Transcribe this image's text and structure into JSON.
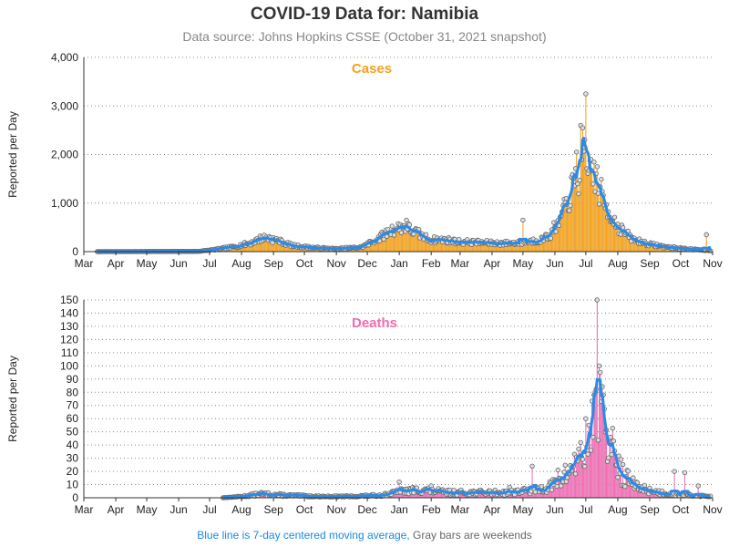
{
  "title": "COVID-19 Data for: Namibia",
  "subtitle": "Data source: Johns Hopkins CSSE (October 31, 2021 snapshot)",
  "footnote": {
    "blue": "Blue line is 7-day centered moving average,",
    "gray": "Gray bars are weekends"
  },
  "colors": {
    "cases": "#f5a21a",
    "deaths": "#f06cb4",
    "moving_average": "#2b8ae8",
    "weekend_bar": "#aaaaaa",
    "marker_outline": "#666666",
    "gridline": "#888888"
  },
  "chart_data": [
    {
      "type": "bar",
      "title": "Cases",
      "ylabel": "Reported per Day",
      "ylim": [
        0,
        4000
      ],
      "yticks": [
        "0",
        "1,000",
        "2,000",
        "3,000",
        "4,000"
      ],
      "ytick_values": [
        0,
        1000,
        2000,
        3000,
        4000
      ],
      "xticks": [
        "Mar",
        "Apr",
        "May",
        "Jun",
        "Jul",
        "Aug",
        "Sep",
        "Oct",
        "Nov",
        "Dec",
        "Jan",
        "Feb",
        "Mar",
        "Apr",
        "May",
        "Jun",
        "Jul",
        "Aug",
        "Sep",
        "Oct",
        "Nov"
      ],
      "xtick_dates": [
        "2020-03-01",
        "2020-04-01",
        "2020-05-01",
        "2020-06-01",
        "2020-07-01",
        "2020-08-01",
        "2020-09-01",
        "2020-10-01",
        "2020-11-01",
        "2020-12-01",
        "2021-01-01",
        "2021-02-01",
        "2021-03-01",
        "2021-04-01",
        "2021-05-01",
        "2021-06-01",
        "2021-07-01",
        "2021-08-01",
        "2021-09-01",
        "2021-10-01",
        "2021-11-01"
      ],
      "xlim": [
        "2020-03-01",
        "2021-11-01"
      ],
      "grid": "horizontal dotted",
      "series_keypoints": {
        "daily": [
          [
            "2020-03-14",
            0
          ],
          [
            "2020-06-20",
            5
          ],
          [
            "2020-07-05",
            40
          ],
          [
            "2020-07-25",
            100
          ],
          [
            "2020-08-10",
            180
          ],
          [
            "2020-08-22",
            290
          ],
          [
            "2020-09-05",
            230
          ],
          [
            "2020-09-20",
            120
          ],
          [
            "2020-10-10",
            80
          ],
          [
            "2020-11-01",
            55
          ],
          [
            "2020-11-25",
            90
          ],
          [
            "2020-12-10",
            250
          ],
          [
            "2020-12-25",
            450
          ],
          [
            "2021-01-05",
            520
          ],
          [
            "2021-01-15",
            420
          ],
          [
            "2021-01-30",
            250
          ],
          [
            "2021-02-15",
            240
          ],
          [
            "2021-03-01",
            200
          ],
          [
            "2021-03-20",
            190
          ],
          [
            "2021-04-10",
            170
          ],
          [
            "2021-04-30",
            190
          ],
          [
            "2021-05-20",
            250
          ],
          [
            "2021-06-01",
            400
          ],
          [
            "2021-06-10",
            850
          ],
          [
            "2021-06-18",
            1300
          ],
          [
            "2021-06-28",
            1650
          ],
          [
            "2021-07-03",
            1700
          ],
          [
            "2021-07-10",
            1500
          ],
          [
            "2021-07-20",
            950
          ],
          [
            "2021-08-01",
            520
          ],
          [
            "2021-08-15",
            260
          ],
          [
            "2021-09-01",
            150
          ],
          [
            "2021-09-20",
            90
          ],
          [
            "2021-10-10",
            50
          ],
          [
            "2021-10-30",
            20
          ]
        ],
        "spikes": [
          [
            "2021-07-01",
            3250
          ],
          [
            "2021-06-26",
            2600
          ],
          [
            "2021-06-28",
            2550
          ],
          [
            "2021-06-30",
            2300
          ],
          [
            "2021-06-22",
            2050
          ],
          [
            "2021-07-06",
            1900
          ],
          [
            "2021-07-12",
            1750
          ],
          [
            "2021-05-01",
            650
          ],
          [
            "2021-05-31",
            600
          ],
          [
            "2021-05-24",
            350
          ],
          [
            "2021-10-26",
            350
          ],
          [
            "2021-01-08",
            650
          ],
          [
            "2020-08-28",
            310
          ]
        ]
      }
    },
    {
      "type": "bar",
      "title": "Deaths",
      "ylabel": "Reported per Day",
      "ylim": [
        0,
        150
      ],
      "yticks": [
        "0",
        "10",
        "20",
        "30",
        "40",
        "50",
        "60",
        "70",
        "80",
        "90",
        "100",
        "110",
        "120",
        "130",
        "140",
        "150"
      ],
      "ytick_values": [
        0,
        10,
        20,
        30,
        40,
        50,
        60,
        70,
        80,
        90,
        100,
        110,
        120,
        130,
        140,
        150
      ],
      "xticks": [
        "Mar",
        "Apr",
        "May",
        "Jun",
        "Jul",
        "Aug",
        "Sep",
        "Oct",
        "Nov",
        "Dec",
        "Jan",
        "Feb",
        "Mar",
        "Apr",
        "May",
        "Jun",
        "Jul",
        "Aug",
        "Sep",
        "Oct",
        "Nov"
      ],
      "xtick_dates": [
        "2020-03-01",
        "2020-04-01",
        "2020-05-01",
        "2020-06-01",
        "2020-07-01",
        "2020-08-01",
        "2020-09-01",
        "2020-10-01",
        "2020-11-01",
        "2020-12-01",
        "2021-01-01",
        "2021-02-01",
        "2021-03-01",
        "2021-04-01",
        "2021-05-01",
        "2021-06-01",
        "2021-07-01",
        "2021-08-01",
        "2021-09-01",
        "2021-10-01",
        "2021-11-01"
      ],
      "xlim": [
        "2020-03-01",
        "2021-11-01"
      ],
      "grid": "horizontal dotted",
      "series_keypoints": {
        "daily": [
          [
            "2020-07-14",
            0
          ],
          [
            "2020-08-01",
            1
          ],
          [
            "2020-08-20",
            3
          ],
          [
            "2020-09-10",
            2
          ],
          [
            "2020-10-15",
            1
          ],
          [
            "2020-11-15",
            1
          ],
          [
            "2020-12-15",
            2
          ],
          [
            "2021-01-05",
            5
          ],
          [
            "2021-01-25",
            6
          ],
          [
            "2021-02-15",
            4
          ],
          [
            "2021-03-15",
            4
          ],
          [
            "2021-04-15",
            4
          ],
          [
            "2021-05-15",
            6
          ],
          [
            "2021-06-01",
            10
          ],
          [
            "2021-06-15",
            20
          ],
          [
            "2021-06-25",
            30
          ],
          [
            "2021-07-05",
            42
          ],
          [
            "2021-07-12",
            72
          ],
          [
            "2021-07-18",
            55
          ],
          [
            "2021-07-25",
            40
          ],
          [
            "2021-08-05",
            18
          ],
          [
            "2021-08-20",
            8
          ],
          [
            "2021-09-10",
            4
          ],
          [
            "2021-10-10",
            2
          ],
          [
            "2021-10-30",
            1
          ]
        ],
        "spikes": [
          [
            "2021-07-12",
            150
          ],
          [
            "2021-07-14",
            100
          ],
          [
            "2021-07-15",
            95
          ],
          [
            "2021-07-10",
            80
          ],
          [
            "2021-07-09",
            78
          ],
          [
            "2021-07-01",
            60
          ],
          [
            "2021-07-04",
            55
          ],
          [
            "2021-07-20",
            50
          ],
          [
            "2021-07-24",
            45
          ],
          [
            "2021-06-20",
            33
          ],
          [
            "2021-05-10",
            24
          ],
          [
            "2021-06-04",
            21
          ],
          [
            "2021-09-25",
            20
          ],
          [
            "2021-10-05",
            19
          ],
          [
            "2021-01-01",
            12
          ],
          [
            "2021-02-01",
            9
          ],
          [
            "2021-04-18",
            8
          ],
          [
            "2021-10-18",
            9
          ]
        ]
      }
    }
  ]
}
